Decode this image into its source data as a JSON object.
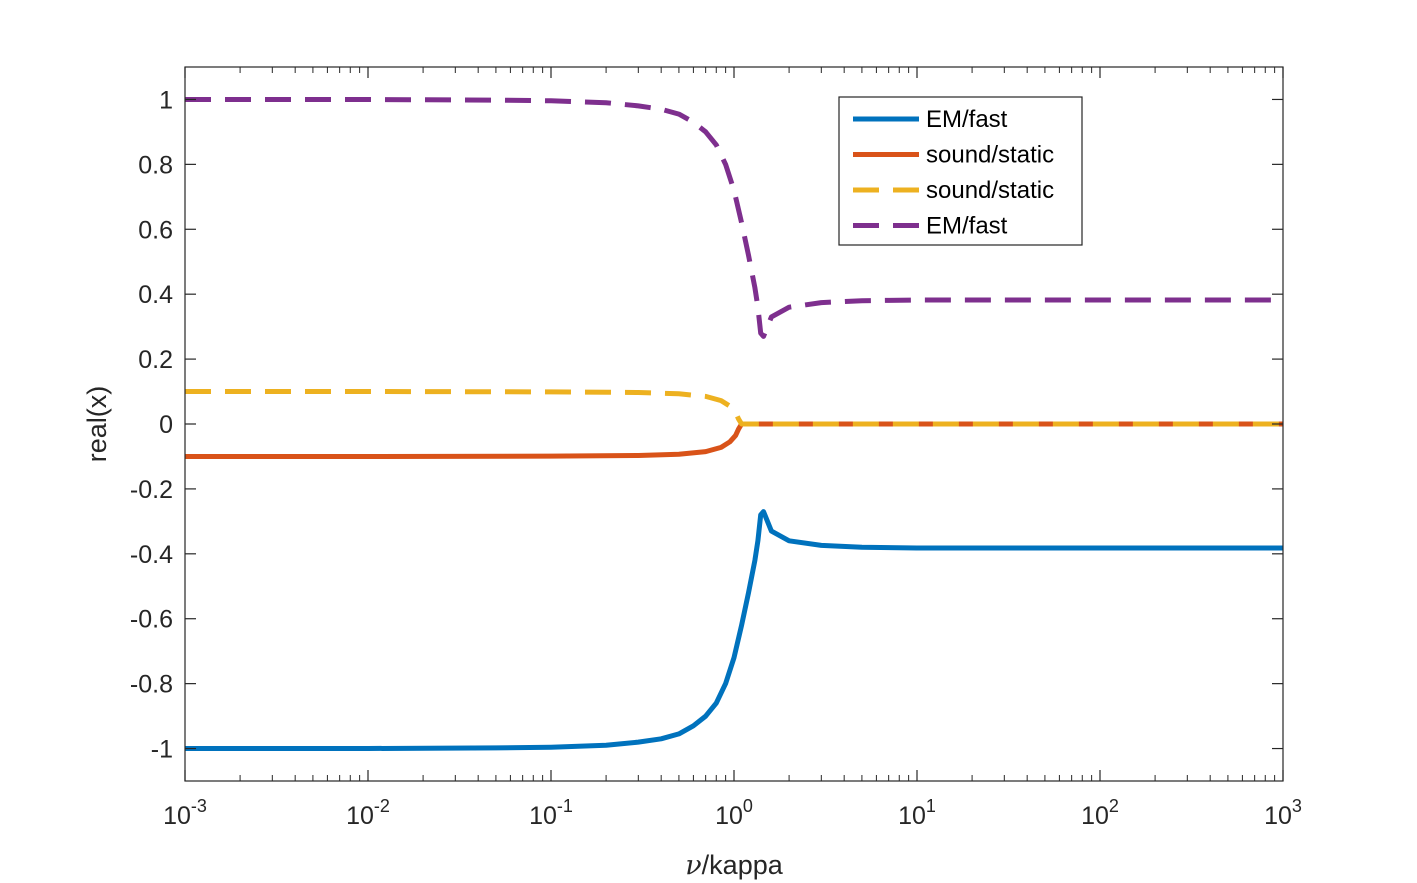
{
  "chart_data": {
    "type": "line",
    "xlabel_symbol": "ν",
    "xlabel_text": "/kappa",
    "ylabel": "real(x)",
    "xscale": "log",
    "xlim": [
      0.001,
      1000
    ],
    "ylim": [
      -1.1,
      1.1
    ],
    "x_ticks": [
      {
        "base": "10",
        "exp": "-3",
        "value": 0.001
      },
      {
        "base": "10",
        "exp": "-2",
        "value": 0.01
      },
      {
        "base": "10",
        "exp": "-1",
        "value": 0.1
      },
      {
        "base": "10",
        "exp": "0",
        "value": 1
      },
      {
        "base": "10",
        "exp": "1",
        "value": 10
      },
      {
        "base": "10",
        "exp": "2",
        "value": 100
      },
      {
        "base": "10",
        "exp": "3",
        "value": 1000
      }
    ],
    "y_ticks": [
      {
        "label": "1",
        "value": 1
      },
      {
        "label": "0.8",
        "value": 0.8
      },
      {
        "label": "0.6",
        "value": 0.6
      },
      {
        "label": "0.4",
        "value": 0.4
      },
      {
        "label": "0.2",
        "value": 0.2
      },
      {
        "label": "0",
        "value": 0
      },
      {
        "label": "-0.2",
        "value": -0.2
      },
      {
        "label": "-0.4",
        "value": -0.4
      },
      {
        "label": "-0.6",
        "value": -0.6
      },
      {
        "label": "-0.8",
        "value": -0.8
      },
      {
        "label": "-1",
        "value": -1
      }
    ],
    "legend_position": "top-right",
    "series": [
      {
        "name": "EM/fast",
        "color": "#0072BD",
        "style": "solid",
        "x": [
          0.001,
          0.01,
          0.05,
          0.1,
          0.2,
          0.3,
          0.4,
          0.5,
          0.6,
          0.7,
          0.8,
          0.9,
          1.0,
          1.1,
          1.2,
          1.3,
          1.35,
          1.4,
          1.45,
          1.6,
          2,
          3,
          5,
          10,
          100,
          1000
        ],
        "y": [
          -1.0,
          -1.0,
          -0.998,
          -0.996,
          -0.99,
          -0.98,
          -0.97,
          -0.955,
          -0.93,
          -0.9,
          -0.86,
          -0.8,
          -0.72,
          -0.62,
          -0.52,
          -0.42,
          -0.36,
          -0.28,
          -0.27,
          -0.33,
          -0.36,
          -0.374,
          -0.38,
          -0.382,
          -0.382,
          -0.382
        ]
      },
      {
        "name": "sound/static",
        "color": "#D95319",
        "style": "solid",
        "x": [
          0.001,
          0.01,
          0.1,
          0.3,
          0.5,
          0.7,
          0.85,
          0.95,
          1.02,
          1.06,
          1.1,
          2,
          10,
          100,
          1000
        ],
        "y": [
          -0.1,
          -0.1,
          -0.099,
          -0.097,
          -0.093,
          -0.085,
          -0.072,
          -0.055,
          -0.035,
          -0.015,
          0.0,
          0.0,
          0.0,
          0.0,
          0.0
        ]
      },
      {
        "name": "sound/static",
        "color": "#EDB120",
        "style": "dashed",
        "x": [
          0.001,
          0.01,
          0.1,
          0.3,
          0.5,
          0.7,
          0.85,
          0.95,
          1.02,
          1.06,
          1.1,
          2,
          10,
          100,
          1000
        ],
        "y": [
          0.1,
          0.1,
          0.099,
          0.097,
          0.093,
          0.085,
          0.072,
          0.055,
          0.035,
          0.015,
          0.0,
          0.0,
          0.0,
          0.0,
          0.0
        ]
      },
      {
        "name": "EM/fast",
        "color": "#7E2F8E",
        "style": "dashed",
        "x": [
          0.001,
          0.01,
          0.05,
          0.1,
          0.2,
          0.3,
          0.4,
          0.5,
          0.6,
          0.7,
          0.8,
          0.9,
          1.0,
          1.1,
          1.2,
          1.3,
          1.35,
          1.4,
          1.45,
          1.6,
          2,
          3,
          5,
          10,
          100,
          1000
        ],
        "y": [
          1.0,
          1.0,
          0.998,
          0.996,
          0.99,
          0.98,
          0.97,
          0.955,
          0.93,
          0.9,
          0.86,
          0.8,
          0.72,
          0.62,
          0.52,
          0.42,
          0.36,
          0.28,
          0.27,
          0.33,
          0.36,
          0.374,
          0.38,
          0.382,
          0.382,
          0.382
        ]
      }
    ]
  }
}
